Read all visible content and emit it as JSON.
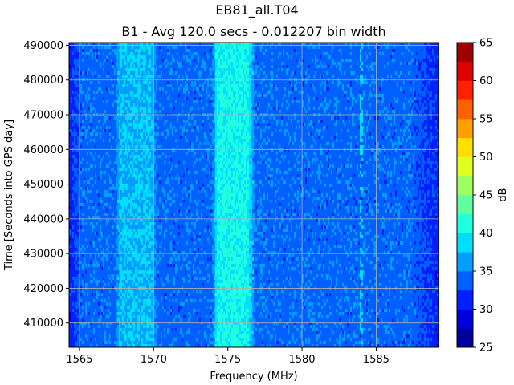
{
  "chart_data": {
    "type": "heatmap",
    "title": "EB81_all.T04",
    "subtitle": "B1 - Avg 120.0 secs - 0.012207 bin width",
    "xlabel": "Frequency (MHz)",
    "ylabel": "Time [Seconds into GPS day]",
    "colorbar_label": "dB",
    "xlim": [
      1564.3,
      1589.2
    ],
    "ylim": [
      403000,
      490800
    ],
    "x_ticks": [
      1565,
      1570,
      1575,
      1580,
      1585
    ],
    "y_ticks": [
      410000,
      420000,
      430000,
      440000,
      450000,
      460000,
      470000,
      480000,
      490000
    ],
    "colorbar_ticks": [
      25,
      30,
      35,
      40,
      45,
      50,
      55,
      60,
      65
    ],
    "colorbar_range": [
      25,
      65
    ],
    "colormap": "jet",
    "grid": true,
    "colorbar_placement": "right",
    "frequency_profile_db": {
      "frequency_mhz": [
        1564.3,
        1565.2,
        1567.4,
        1567.7,
        1569.8,
        1570.3,
        1573.9,
        1574.3,
        1576.3,
        1576.9,
        1587.4,
        1589.2
      ],
      "level_db": [
        31,
        34,
        34,
        37.5,
        37.5,
        34,
        34,
        40.5,
        40.5,
        34,
        34,
        31
      ]
    },
    "narrowband_spur": {
      "frequency_mhz": 1584.0,
      "level_db": 37.5
    }
  }
}
